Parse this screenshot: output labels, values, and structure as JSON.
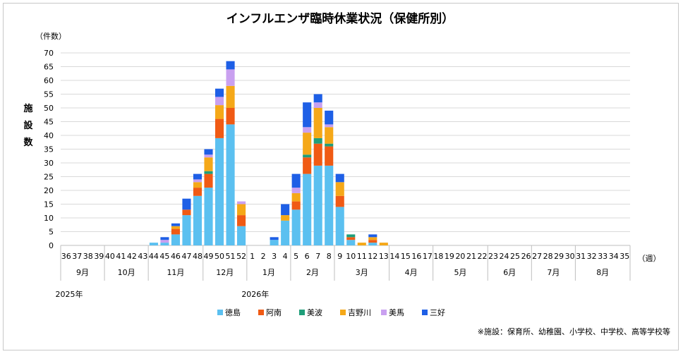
{
  "chart_data": {
    "type": "bar",
    "stacked": true,
    "title": "インフルエンザ臨時休業状況（保健所別）",
    "y_unit": "（件数）",
    "ylabel": "施設数",
    "x_unit": "（週）",
    "ylim": [
      0,
      70
    ],
    "y_ticks": [
      0,
      5,
      10,
      15,
      20,
      25,
      30,
      35,
      40,
      45,
      50,
      55,
      60,
      65,
      70
    ],
    "grid": true,
    "legend_position": "bottom",
    "categories": [
      "36",
      "37",
      "38",
      "39",
      "40",
      "41",
      "42",
      "43",
      "44",
      "45",
      "46",
      "47",
      "48",
      "49",
      "50",
      "51",
      "52",
      "1",
      "2",
      "3",
      "4",
      "5",
      "6",
      "7",
      "8",
      "9",
      "10",
      "11",
      "12",
      "13",
      "14",
      "15",
      "16",
      "17",
      "18",
      "19",
      "20",
      "21",
      "22",
      "23",
      "24",
      "25",
      "26",
      "27",
      "28",
      "29",
      "30",
      "31",
      "32",
      "33",
      "34",
      "35"
    ],
    "months": [
      {
        "label": "9月",
        "span": 4
      },
      {
        "label": "10月",
        "span": 4
      },
      {
        "label": "11月",
        "span": 5
      },
      {
        "label": "12月",
        "span": 4
      },
      {
        "label": "1月",
        "span": 4
      },
      {
        "label": "2月",
        "span": 4
      },
      {
        "label": "3月",
        "span": 5
      },
      {
        "label": "4月",
        "span": 4
      },
      {
        "label": "5月",
        "span": 5
      },
      {
        "label": "6月",
        "span": 4
      },
      {
        "label": "7月",
        "span": 4
      },
      {
        "label": "8月",
        "span": 5
      }
    ],
    "years": [
      {
        "label": "2025年",
        "start_index": 0
      },
      {
        "label": "2026年",
        "start_index": 17
      }
    ],
    "series": [
      {
        "name": "徳島",
        "color": "#5bc0f0",
        "values": [
          0,
          0,
          0,
          0,
          0,
          0,
          0,
          0,
          1,
          1,
          4,
          11,
          18,
          21,
          39,
          44,
          7,
          0,
          0,
          2,
          9,
          13,
          26,
          29,
          29,
          14,
          2,
          0,
          1,
          0,
          0,
          0,
          0,
          0,
          0,
          0,
          0,
          0,
          0,
          0,
          0,
          0,
          0,
          0,
          0,
          0,
          0,
          0,
          0,
          0,
          0,
          0
        ]
      },
      {
        "name": "阿南",
        "color": "#f05a14",
        "values": [
          0,
          0,
          0,
          0,
          0,
          0,
          0,
          0,
          0,
          0,
          2,
          2,
          3,
          5,
          7,
          6,
          4,
          0,
          0,
          0,
          0,
          3,
          6,
          8,
          7,
          4,
          1,
          0,
          1,
          0,
          0,
          0,
          0,
          0,
          0,
          0,
          0,
          0,
          0,
          0,
          0,
          0,
          0,
          0,
          0,
          0,
          0,
          0,
          0,
          0,
          0,
          0
        ]
      },
      {
        "name": "美波",
        "color": "#1f9e7a",
        "values": [
          0,
          0,
          0,
          0,
          0,
          0,
          0,
          0,
          0,
          0,
          0,
          0,
          0,
          1,
          0,
          0,
          0,
          0,
          0,
          0,
          0,
          0,
          1,
          2,
          1,
          0,
          1,
          0,
          0,
          0,
          0,
          0,
          0,
          0,
          0,
          0,
          0,
          0,
          0,
          0,
          0,
          0,
          0,
          0,
          0,
          0,
          0,
          0,
          0,
          0,
          0,
          0
        ]
      },
      {
        "name": "吉野川",
        "color": "#f5a818",
        "values": [
          0,
          0,
          0,
          0,
          0,
          0,
          0,
          0,
          0,
          0,
          1,
          0,
          2,
          5,
          5,
          8,
          4,
          0,
          0,
          0,
          2,
          3,
          8,
          11,
          6,
          5,
          0,
          1,
          1,
          1,
          0,
          0,
          0,
          0,
          0,
          0,
          0,
          0,
          0,
          0,
          0,
          0,
          0,
          0,
          0,
          0,
          0,
          0,
          0,
          0,
          0,
          0
        ]
      },
      {
        "name": "美馬",
        "color": "#c9a0f0",
        "values": [
          0,
          0,
          0,
          0,
          0,
          0,
          0,
          0,
          0,
          1,
          0,
          0,
          1,
          1,
          3,
          6,
          1,
          0,
          0,
          0,
          0,
          2,
          2,
          2,
          1,
          0,
          0,
          0,
          0,
          0,
          0,
          0,
          0,
          0,
          0,
          0,
          0,
          0,
          0,
          0,
          0,
          0,
          0,
          0,
          0,
          0,
          0,
          0,
          0,
          0,
          0,
          0
        ]
      },
      {
        "name": "三好",
        "color": "#1e5fe6",
        "values": [
          0,
          0,
          0,
          0,
          0,
          0,
          0,
          0,
          0,
          1,
          1,
          4,
          2,
          2,
          3,
          3,
          0,
          0,
          0,
          1,
          4,
          5,
          9,
          3,
          5,
          3,
          0,
          0,
          1,
          0,
          0,
          0,
          0,
          0,
          0,
          0,
          0,
          0,
          0,
          0,
          0,
          0,
          0,
          0,
          0,
          0,
          0,
          0,
          0,
          0,
          0,
          0
        ]
      }
    ],
    "footnote": "※施設：保育所、幼稚園、小学校、中学校、高等学校等"
  }
}
